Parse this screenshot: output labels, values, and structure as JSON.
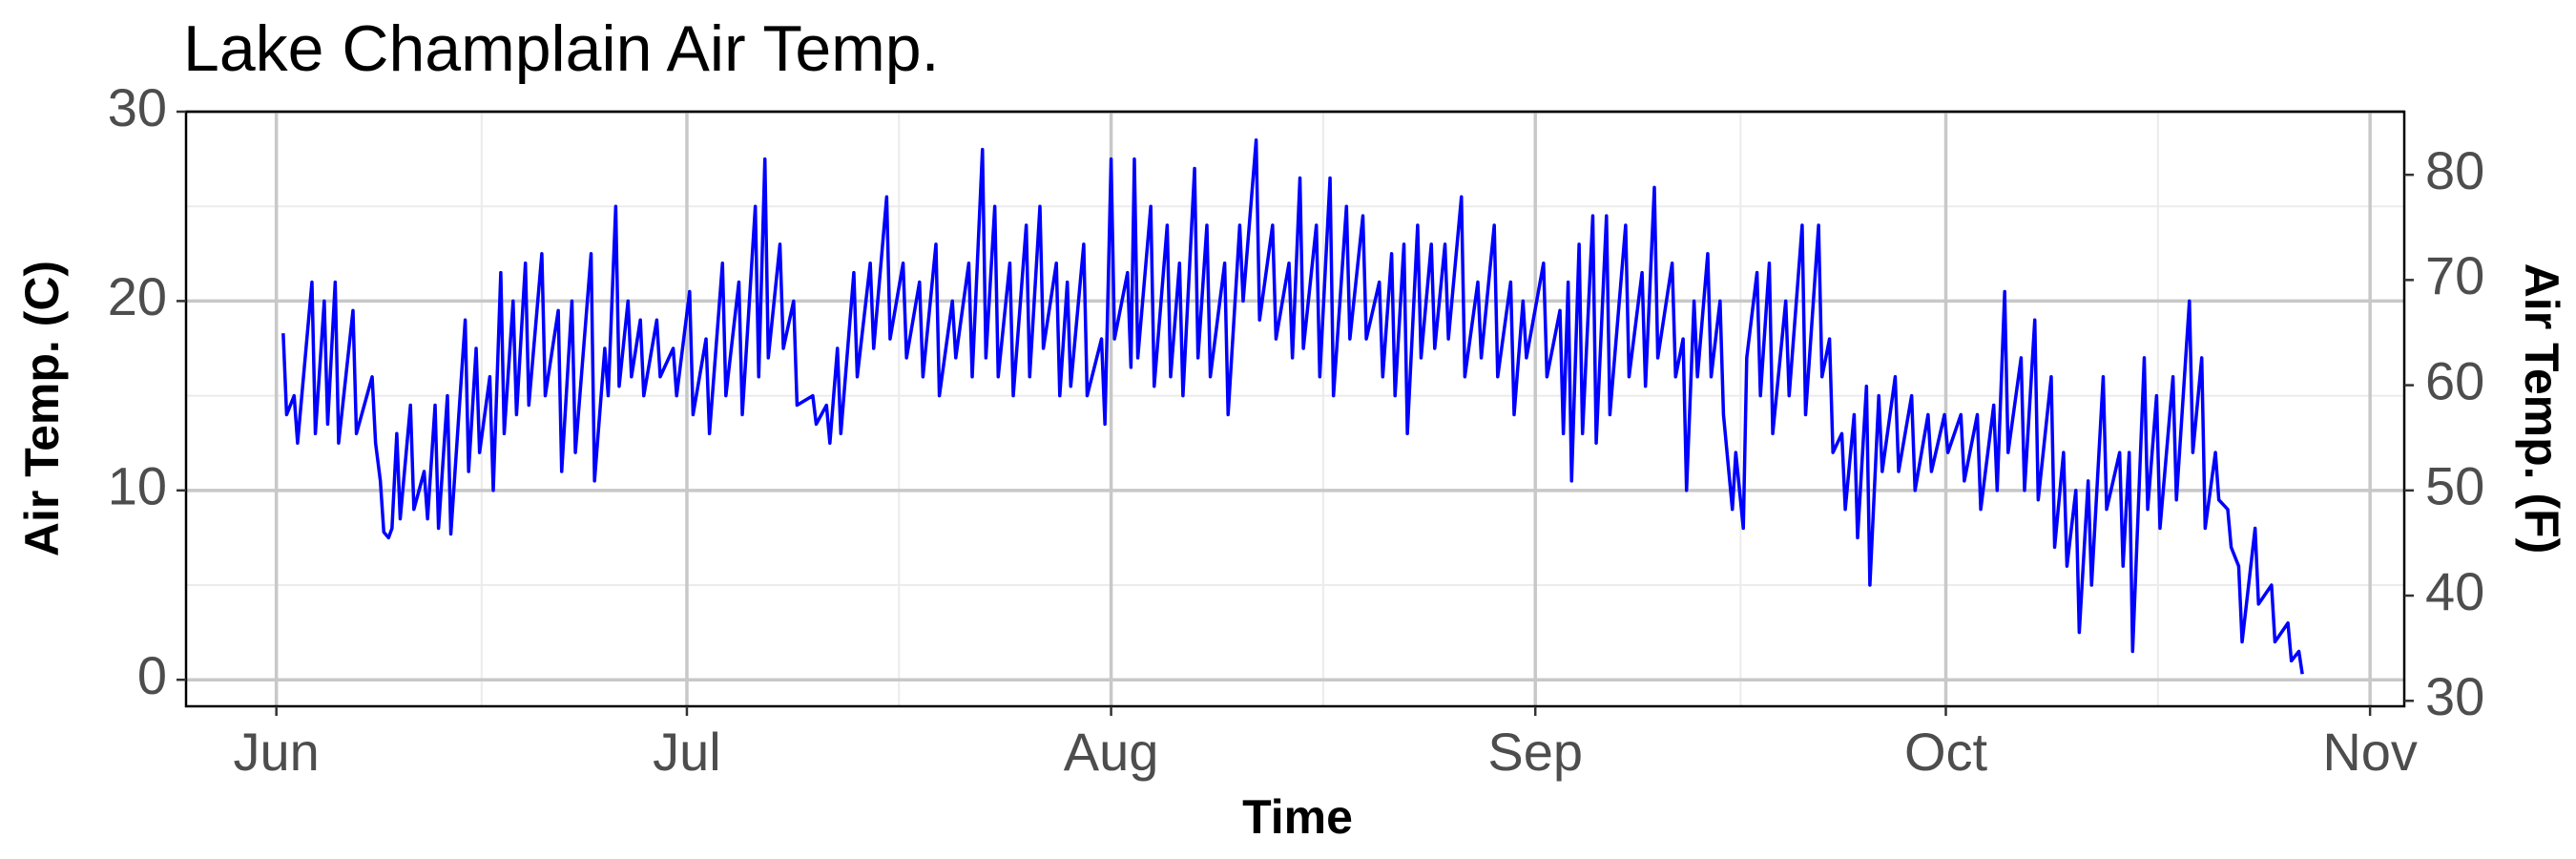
{
  "chart_data": {
    "type": "line",
    "title": "Lake Champlain Air Temp.",
    "x_label": "Time",
    "y_label": "Air Temp. (C)",
    "y2_label": "Air Temp. (F)",
    "color": "#0000ff",
    "grid": true,
    "xlim": [
      -6.6,
      155.5
    ],
    "xticks": [
      {
        "value": 0,
        "label": "Jun"
      },
      {
        "value": 30,
        "label": "Jul"
      },
      {
        "value": 61,
        "label": "Aug"
      },
      {
        "value": 92,
        "label": "Sep"
      },
      {
        "value": 122,
        "label": "Oct"
      },
      {
        "value": 153,
        "label": "Nov"
      }
    ],
    "ylim": [
      -1.4,
      30
    ],
    "yticks": [
      0,
      10,
      20,
      30
    ],
    "y2lim": [
      29.48,
      86
    ],
    "y2ticks": [
      30,
      40,
      50,
      60,
      70,
      80
    ],
    "x": [
      0.5,
      0.75,
      1.3,
      1.55,
      2.6,
      2.85,
      3.5,
      3.75,
      4.3,
      4.55,
      5.6,
      5.85,
      7,
      7.25,
      7.6,
      7.85,
      8.2,
      8.45,
      8.8,
      9.05,
      9.8,
      10.05,
      10.8,
      11.05,
      11.6,
      11.85,
      12.5,
      12.75,
      13.8,
      14.05,
      14.6,
      14.85,
      15.6,
      15.85,
      16.4,
      16.65,
      17.3,
      17.55,
      18.2,
      18.45,
      19.4,
      19.65,
      20.6,
      20.85,
      21.6,
      21.85,
      23,
      23.25,
      24,
      24.25,
      24.8,
      25.05,
      25.7,
      25.95,
      26.6,
      26.85,
      27.8,
      28.05,
      29,
      29.25,
      30.2,
      30.45,
      31.4,
      31.65,
      32.6,
      32.85,
      33.8,
      34.05,
      35,
      35.25,
      35.7,
      35.95,
      36.8,
      37.05,
      37.8,
      38.05,
      39.2,
      39.45,
      40.2,
      40.45,
      41,
      41.25,
      42.2,
      42.45,
      43.4,
      43.65,
      44.6,
      44.85,
      45.8,
      46.05,
      47,
      47.25,
      48.2,
      48.45,
      49.4,
      49.65,
      50.6,
      50.85,
      51.6,
      51.85,
      52.5,
      52.75,
      53.6,
      53.85,
      54.8,
      55.05,
      55.8,
      56.05,
      57,
      57.25,
      57.8,
      58.05,
      59,
      59.25,
      60.3,
      60.55,
      61,
      61.25,
      62.2,
      62.45,
      62.7,
      62.95,
      63.9,
      64.15,
      65.1,
      65.35,
      66,
      66.25,
      67.1,
      67.35,
      68,
      68.25,
      69.3,
      69.55,
      70.4,
      70.65,
      71.6,
      71.85,
      72.8,
      73.05,
      74,
      74.25,
      74.8,
      75.05,
      76,
      76.25,
      77,
      77.25,
      78.2,
      78.45,
      79.4,
      79.65,
      80.6,
      80.85,
      81.5,
      81.75,
      82.4,
      82.65,
      83.4,
      83.65,
      84.4,
      84.65,
      85.4,
      85.65,
      86.6,
      86.85,
      87.8,
      88.05,
      89,
      89.25,
      90.2,
      90.45,
      91.1,
      91.35,
      92.6,
      92.85,
      93.8,
      94.05,
      94.4,
      94.65,
      95.2,
      95.45,
      96.2,
      96.45,
      97.2,
      97.45,
      98.6,
      98.85,
      99.8,
      100.05,
      100.7,
      100.95,
      102,
      102.25,
      102.8,
      103.05,
      103.6,
      103.85,
      104.6,
      104.85,
      105.5,
      105.75,
      106.4,
      106.65,
      107.2,
      107.45,
      108.2,
      108.45,
      109.1,
      109.35,
      110.3,
      110.55,
      111.5,
      111.75,
      112.7,
      112.95,
      113.5,
      113.75,
      114.4,
      114.65,
      115.3,
      115.55,
      116.2,
      116.45,
      117.1,
      117.35,
      118.3,
      118.55,
      119.5,
      119.75,
      120.7,
      120.95,
      121.9,
      122.15,
      123.1,
      123.35,
      124.3,
      124.55,
      125.5,
      125.75,
      126.3,
      126.55,
      127.5,
      127.75,
      128.5,
      128.75,
      129.7,
      129.95,
      130.6,
      130.85,
      131.5,
      131.75,
      132.4,
      132.65,
      133.5,
      133.75,
      134.7,
      134.95,
      135.4,
      135.65,
      136.5,
      136.75,
      137.4,
      137.65,
      138.6,
      138.85,
      139.8,
      140.05,
      140.7,
      140.95,
      141.7,
      141.95,
      142.6,
      142.85,
      143.4,
      143.65,
      144.6,
      144.85,
      145.8,
      146.05,
      147,
      147.25,
      147.8,
      148.05
    ],
    "values": [
      18.3,
      14,
      15,
      12.5,
      21,
      13,
      20,
      13.5,
      21,
      12.5,
      19.5,
      13,
      16,
      12.5,
      10.5,
      7.8,
      7.5,
      8,
      13,
      8.5,
      14.5,
      9,
      11,
      8.5,
      14.5,
      8,
      15,
      7.7,
      19,
      11,
      17.5,
      12,
      16,
      10,
      21.5,
      13,
      20,
      14,
      22,
      14.5,
      22.5,
      15,
      19.5,
      11,
      20,
      12,
      22.5,
      10.5,
      17.5,
      15,
      25,
      15.5,
      20,
      16,
      19,
      15,
      19,
      16,
      17.5,
      15,
      20.5,
      14,
      18,
      13,
      22,
      15,
      21,
      14,
      25,
      16,
      27.5,
      17,
      23,
      17.5,
      20,
      14.5,
      15,
      13.5,
      14.5,
      12.5,
      17.5,
      13,
      21.5,
      16,
      22,
      17.5,
      25.5,
      18,
      22,
      17,
      21,
      16,
      23,
      15,
      20,
      17,
      22,
      16,
      28,
      17,
      25,
      16,
      22,
      15,
      24,
      16,
      25,
      17.5,
      22,
      15,
      21,
      15.5,
      23,
      15,
      18,
      13.5,
      27.5,
      18,
      21.5,
      16.5,
      27.5,
      17,
      25,
      15.5,
      24,
      16,
      22,
      15,
      27,
      17,
      24,
      16,
      22,
      14,
      24,
      20,
      28.5,
      19,
      24,
      18,
      22,
      17,
      26.5,
      17.5,
      24,
      16,
      26.5,
      15,
      25,
      18,
      24.5,
      18,
      21,
      16,
      22.5,
      15,
      23,
      13,
      24,
      17,
      23,
      17.5,
      23,
      18,
      25.5,
      16,
      21,
      17,
      24,
      16,
      21,
      14,
      20,
      17,
      22,
      16,
      19.5,
      13,
      21,
      10.5,
      23,
      13,
      24.5,
      12.5,
      24.5,
      14,
      24,
      16,
      21.5,
      15.5,
      26,
      17,
      22,
      16,
      18,
      10,
      20,
      16,
      22.5,
      16,
      20,
      14,
      9,
      12,
      8,
      17,
      21.5,
      15,
      22,
      13,
      20,
      15,
      24,
      14,
      24,
      16,
      18,
      12,
      13,
      9,
      14,
      7.5,
      15.5,
      5,
      15,
      11,
      16,
      11,
      15,
      10,
      14,
      11,
      14,
      12,
      14,
      10.5,
      14,
      9,
      14.5,
      10,
      20.5,
      12,
      17,
      10,
      19,
      9.5,
      16,
      7,
      12,
      6,
      10,
      2.5,
      10.5,
      5,
      16,
      9,
      12,
      6,
      12,
      1.5,
      17,
      9,
      15,
      8,
      16,
      9.5,
      20,
      12,
      17,
      8,
      12,
      9.5,
      9,
      7,
      6,
      2,
      8,
      4,
      5,
      2,
      3,
      1,
      1.5,
      0.3
    ]
  }
}
